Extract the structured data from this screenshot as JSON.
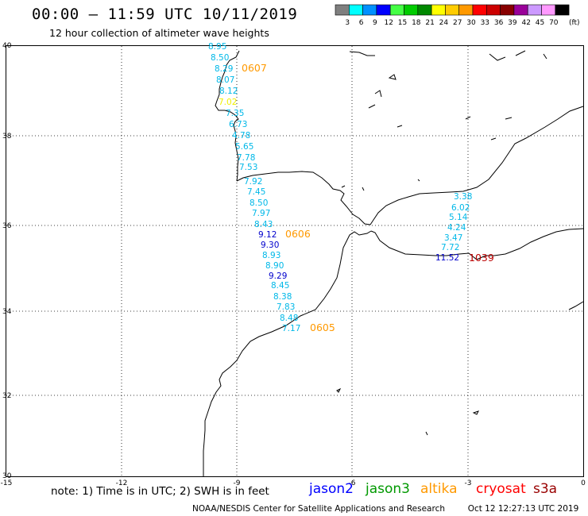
{
  "header": {
    "title": "00:00 – 11:59 UTC 10/11/2019",
    "subtitle": "12 hour collection of altimeter wave heights"
  },
  "color_scale": {
    "unit_label": "(ft)",
    "swatches": [
      {
        "color": "#7f7f7f",
        "label": "3"
      },
      {
        "color": "#00ffff",
        "label": "6"
      },
      {
        "color": "#0090ff",
        "label": "9"
      },
      {
        "color": "#0000ff",
        "label": "12"
      },
      {
        "color": "#44ff44",
        "label": "15"
      },
      {
        "color": "#00cc00",
        "label": "18"
      },
      {
        "color": "#008800",
        "label": "21"
      },
      {
        "color": "#ffff00",
        "label": "24"
      },
      {
        "color": "#ffcc00",
        "label": "27"
      },
      {
        "color": "#ff9900",
        "label": "30"
      },
      {
        "color": "#ff0000",
        "label": "33"
      },
      {
        "color": "#cc0000",
        "label": "36"
      },
      {
        "color": "#880000",
        "label": "39"
      },
      {
        "color": "#990099",
        "label": "42"
      },
      {
        "color": "#cc99ff",
        "label": "45"
      },
      {
        "color": "#ff99ff",
        "label": "70"
      },
      {
        "color": "#000000",
        "label": ""
      }
    ]
  },
  "axes": {
    "lon_ticks": [
      "-15",
      "-12",
      "-9",
      "-6",
      "-3",
      "0"
    ],
    "lat_ticks": [
      "40",
      "38",
      "36",
      "34",
      "32",
      "30"
    ]
  },
  "tracks": [
    {
      "time": "0607",
      "time_color": "#ff9900",
      "values": [
        "8.95",
        "8.50",
        "8.29",
        "8.07",
        "8.12",
        "7.02",
        "7.35",
        "6.73",
        "4.78",
        "5.65",
        "7.78",
        "7.53"
      ],
      "colors": [
        "#00b8e8",
        "#00b8e8",
        "#00b8e8",
        "#00b8e8",
        "#00b8e8",
        "#f0f000",
        "#00b8e8",
        "#00b8e8",
        "#00b8e8",
        "#00b8e8",
        "#00b8e8",
        "#00b8e8"
      ]
    },
    {
      "time": "0606",
      "time_color": "#ff9900",
      "values": [
        "7.92",
        "7.45",
        "8.50",
        "7.97",
        "8.43",
        "9.12",
        "9.30",
        "8.93",
        "8.90",
        "9.29",
        "8.45",
        "8.38",
        "7.83",
        "8.48",
        "7.17"
      ],
      "colors": [
        "#00b8e8",
        "#00b8e8",
        "#00b8e8",
        "#00b8e8",
        "#00b8e8",
        "#0000cc",
        "#0000cc",
        "#00b8e8",
        "#00b8e8",
        "#0000cc",
        "#00b8e8",
        "#00b8e8",
        "#00b8e8",
        "#00b8e8",
        "#00b8e8"
      ]
    },
    {
      "time": "0605",
      "time_color": "#ff9900",
      "values": [],
      "colors": []
    },
    {
      "time": "1039",
      "time_color": "#bb0000",
      "values": [
        "3.38",
        "6.02",
        "5.14",
        "4.24",
        "3.47",
        "7.72",
        "11.52"
      ],
      "colors": [
        "#00b8e8",
        "#00b8e8",
        "#00b8e8",
        "#00b8e8",
        "#00b8e8",
        "#00b8e8",
        "#0000cc"
      ]
    }
  ],
  "footer": {
    "note": "note: 1) Time is in UTC; 2) SWH is in feet",
    "satellites": [
      {
        "name": "jason2",
        "color": "#0000ff"
      },
      {
        "name": "jason3",
        "color": "#009900"
      },
      {
        "name": "altika",
        "color": "#ff9900"
      },
      {
        "name": "cryosat",
        "color": "#ff0000"
      },
      {
        "name": "s3a",
        "color": "#990000"
      }
    ],
    "credit": "NOAA/NESDIS Center for Satellite Applications and Research",
    "timestamp": "Oct 12 12:27:13 UTC 2019"
  }
}
